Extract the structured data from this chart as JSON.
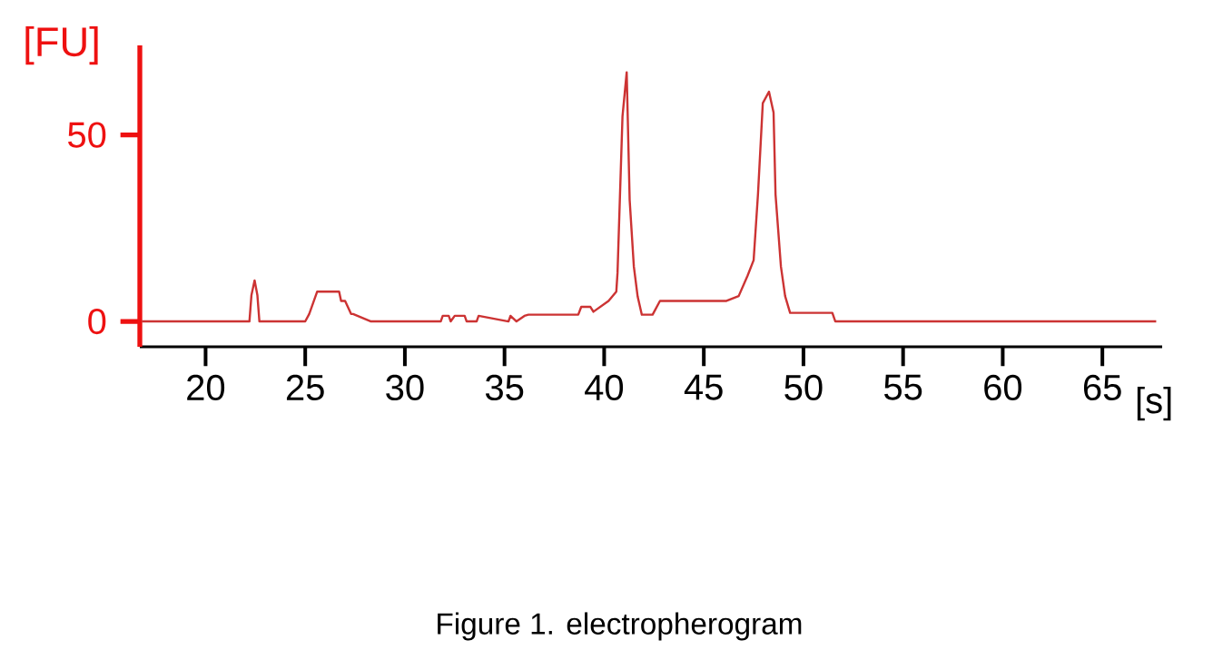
{
  "chart_data": {
    "type": "line",
    "xlabel": "[s]",
    "ylabel": "[FU]",
    "annotations": [
      "Figure 1. electropherogram"
    ],
    "xlim": [
      16.7,
      68
    ],
    "ylim": [
      -6.8,
      74
    ],
    "xticks": [
      20,
      25,
      30,
      35,
      40,
      45,
      50,
      55,
      60,
      65
    ],
    "yticks": [
      0,
      50
    ],
    "grid": false,
    "marker": "none",
    "line_style": "solid",
    "series": [
      {
        "color": "#cc3333",
        "x": [
          16.8,
          22.2,
          22.3,
          22.46,
          22.6,
          22.7,
          25.0,
          25.2,
          25.4,
          25.6,
          26.7,
          26.8,
          27.0,
          27.3,
          27.4,
          28.3,
          31.8,
          31.9,
          32.2,
          32.3,
          32.5,
          33.0,
          33.1,
          33.6,
          33.7,
          35.2,
          35.3,
          35.6,
          36.0,
          36.2,
          38.7,
          38.85,
          39.31,
          39.46,
          40.22,
          40.61,
          40.67,
          40.92,
          41.13,
          41.28,
          41.49,
          41.68,
          41.89,
          42.43,
          42.8,
          44.0,
          46.14,
          46.75,
          47.2,
          47.5,
          47.72,
          47.96,
          48.27,
          48.5,
          48.6,
          48.87,
          49.08,
          49.33,
          51.45,
          51.6,
          67.7
        ],
        "values": [
          0,
          0,
          7,
          11,
          7,
          0,
          0,
          2,
          5,
          8,
          8,
          5.5,
          5.5,
          2,
          2,
          0,
          0,
          1.5,
          1.5,
          0,
          1.5,
          1.5,
          0,
          0,
          1.5,
          0,
          1.5,
          0,
          1.5,
          1.8,
          1.8,
          3.9,
          3.9,
          2.6,
          5.5,
          8,
          13,
          55,
          66.8,
          32.5,
          14.7,
          6.7,
          1.8,
          1.8,
          5.5,
          5.5,
          5.5,
          6.8,
          12.3,
          16.4,
          34.2,
          58.5,
          61.6,
          56,
          34,
          14.7,
          6.8,
          2.3,
          2.3,
          0,
          0
        ]
      }
    ]
  }
}
